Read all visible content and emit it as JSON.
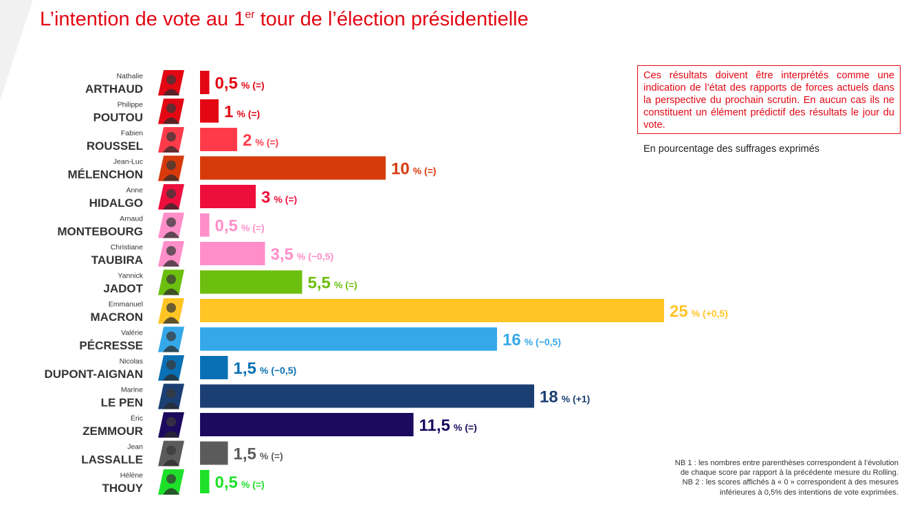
{
  "title": {
    "main_before": "L’intention de vote au 1",
    "sup": "er",
    "main_after": " tour de l’élection présidentielle"
  },
  "warning_text": "Ces résultats doivent être interprétés comme une indication de l’état des rapports de forces actuels dans la perspective du prochain scrutin. En aucun cas ils ne constituent un élément prédictif des résultats le jour du vote.",
  "unit_note": "En pourcentage des suffrages exprimés",
  "footnotes": {
    "nb1_line1": "NB 1 : les nombres entre parenthèses correspondent à l’évolution",
    "nb1_line2": "de chaque score par rapport à la précédente mesure du Rolling.",
    "nb2_line1": "NB 2 : les scores affichés à « 0 » correspondent à des mesures",
    "nb2_line2": "inférieures à 0,5% des intentions de vote exprimées."
  },
  "chart_data": {
    "type": "bar",
    "orientation": "horizontal",
    "unit": "%",
    "xlim": [
      0,
      25
    ],
    "grid": false,
    "legend": "none",
    "candidates": [
      {
        "first": "Nathalie",
        "last": "ARTHAUD",
        "value": 0.5,
        "label": "0,5",
        "change": "(=)",
        "color": "#e30613"
      },
      {
        "first": "Philippe",
        "last": "POUTOU",
        "value": 1,
        "label": "1",
        "change": "(=)",
        "color": "#e30613"
      },
      {
        "first": "Fabien",
        "last": "ROUSSEL",
        "value": 2,
        "label": "2",
        "change": "(=)",
        "color": "#ff3b4a"
      },
      {
        "first": "Jean-Luc",
        "last": "MÉLENCHON",
        "value": 10,
        "label": "10",
        "change": "(=)",
        "color": "#d63a0b"
      },
      {
        "first": "Anne",
        "last": "HIDALGO",
        "value": 3,
        "label": "3",
        "change": "(=)",
        "color": "#ee0e3c"
      },
      {
        "first": "Arnaud",
        "last": "MONTEBOURG",
        "value": 0.5,
        "label": "0,5",
        "change": "(=)",
        "color": "#ff8ec9"
      },
      {
        "first": "Christiane",
        "last": "TAUBIRA",
        "value": 3.5,
        "label": "3,5",
        "change": "(−0,5)",
        "color": "#ff8ec9"
      },
      {
        "first": "Yannick",
        "last": "JADOT",
        "value": 5.5,
        "label": "5,5",
        "change": "(=)",
        "color": "#6cbf0e"
      },
      {
        "first": "Emmanuel",
        "last": "MACRON",
        "value": 25,
        "label": "25",
        "change": "(+0,5)",
        "color": "#ffc525"
      },
      {
        "first": "Valérie",
        "last": "PÉCRESSE",
        "value": 16,
        "label": "16",
        "change": "(−0,5)",
        "color": "#34a8e8"
      },
      {
        "first": "Nicolas",
        "last": "DUPONT-AIGNAN",
        "value": 1.5,
        "label": "1,5",
        "change": "(−0,5)",
        "color": "#0a70b5"
      },
      {
        "first": "Marine",
        "last": "LE PEN",
        "value": 18,
        "label": "18",
        "change": "(+1)",
        "color": "#1b3f73"
      },
      {
        "first": "Éric",
        "last": "ZEMMOUR",
        "value": 11.5,
        "label": "11,5",
        "change": "(=)",
        "color": "#1c0a5f"
      },
      {
        "first": "Jean",
        "last": "LASSALLE",
        "value": 1.5,
        "label": "1,5",
        "change": "(=)",
        "color": "#5b5b5b"
      },
      {
        "first": "Hélène",
        "last": "THOUY",
        "value": 0.5,
        "label": "0,5",
        "change": "(=)",
        "color": "#1ee02a"
      }
    ]
  }
}
